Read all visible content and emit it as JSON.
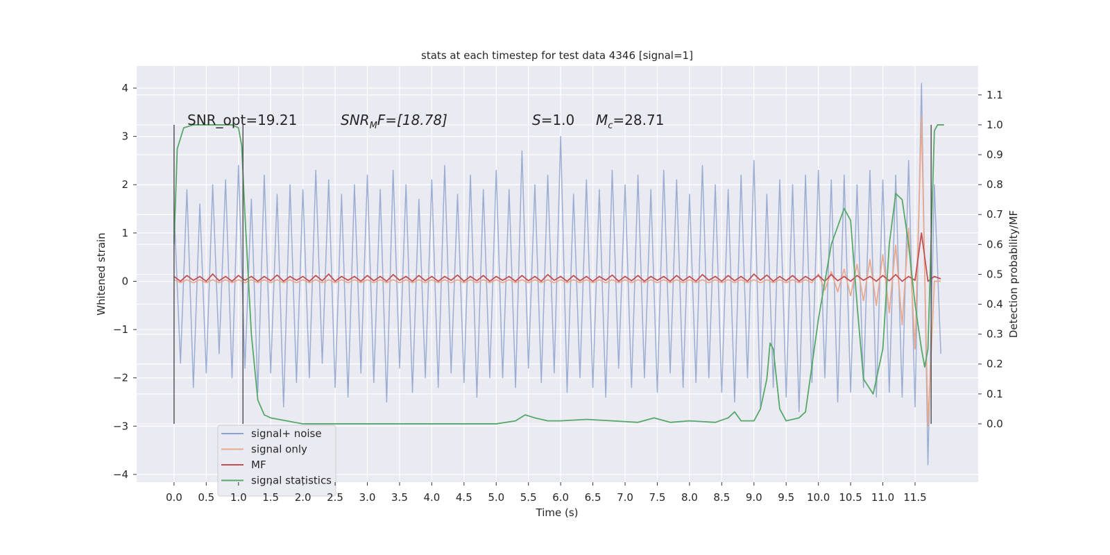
{
  "chart_data": {
    "type": "line",
    "title": "stats at each timestep for test data 4346 [signal=1]",
    "xlabel": "Time (s)",
    "ylabel": "Whitened strain",
    "y2label": "Detection probability/MF",
    "xlim": [
      -0.58,
      12.48
    ],
    "ylim": [
      -4.16,
      4.46
    ],
    "y2lim": [
      -0.195,
      1.197
    ],
    "xticks": [
      {
        "value": 0,
        "label": "0.0"
      },
      0.5,
      {
        "value": 1,
        "label": "1.0"
      },
      1.5,
      {
        "value": 2,
        "label": "2.0"
      },
      2.5,
      {
        "value": 3,
        "label": "3.0"
      },
      3.5,
      {
        "value": 4,
        "label": "4.0"
      },
      4.5,
      {
        "value": 5,
        "label": "5.0"
      },
      5.5,
      {
        "value": 6,
        "label": "6.0"
      },
      6.5,
      {
        "value": 7,
        "label": "7.0"
      },
      7.5,
      {
        "value": 8,
        "label": "8.0"
      },
      8.5,
      {
        "value": 9,
        "label": "9.0"
      },
      9.5,
      {
        "value": 10,
        "label": "10.0"
      },
      10.5,
      {
        "value": 11,
        "label": "11.0"
      },
      11.5
    ],
    "yticks": [
      {
        "value": -4,
        "label": "−4"
      },
      {
        "value": -3,
        "label": "−3"
      },
      {
        "value": -2,
        "label": "−2"
      },
      {
        "value": -1,
        "label": "−1"
      },
      0,
      1,
      2,
      3,
      4
    ],
    "y2ticks": [
      {
        "value": 0,
        "label": "0.0"
      },
      0.1,
      0.2,
      0.3,
      0.4,
      0.5,
      0.6,
      0.7,
      0.8,
      0.9,
      {
        "value": 1,
        "label": "1.0"
      },
      1.1
    ],
    "grid": true,
    "legend": "lower left",
    "annotations": [
      "SNR_opt=19.21",
      {
        "base": "SNR",
        "sub": "M",
        "rest": "F=[18.78]"
      },
      {
        "base": "S",
        "rest": "=1.0"
      },
      {
        "base": "M",
        "sub": "c",
        "rest": "=28.71"
      }
    ],
    "vlines": {
      "x": [
        0,
        1.07,
        11.75
      ],
      "y2range": [
        0,
        1
      ],
      "color": "#555555"
    },
    "x": [
      0,
      0.1,
      0.2,
      0.3,
      0.4,
      0.5,
      0.6,
      0.7,
      0.8,
      0.9,
      1,
      1.1,
      1.2,
      1.3,
      1.4,
      1.5,
      1.6,
      1.7,
      1.8,
      1.9,
      2,
      2.1,
      2.2,
      2.3,
      2.4,
      2.5,
      2.6,
      2.7,
      2.8,
      2.9,
      3,
      3.1,
      3.2,
      3.3,
      3.4,
      3.5,
      3.6,
      3.7,
      3.8,
      3.9,
      4,
      4.1,
      4.2,
      4.3,
      4.4,
      4.5,
      4.6,
      4.7,
      4.8,
      4.9,
      5,
      5.1,
      5.2,
      5.3,
      5.4,
      5.5,
      5.6,
      5.7,
      5.8,
      5.9,
      6,
      6.1,
      6.2,
      6.3,
      6.4,
      6.5,
      6.6,
      6.7,
      6.8,
      6.9,
      7,
      7.1,
      7.2,
      7.3,
      7.4,
      7.5,
      7.6,
      7.7,
      7.8,
      7.9,
      8,
      8.1,
      8.2,
      8.3,
      8.4,
      8.5,
      8.6,
      8.7,
      8.8,
      8.9,
      9,
      9.1,
      9.2,
      9.3,
      9.4,
      9.5,
      9.6,
      9.7,
      9.8,
      9.9,
      10,
      10.1,
      10.2,
      10.3,
      10.4,
      10.5,
      10.6,
      10.7,
      10.8,
      10.9,
      11,
      11.1,
      11.2,
      11.3,
      11.4,
      11.5,
      11.6,
      11.7,
      11.8,
      11.9
    ],
    "series": [
      {
        "name": "signal+ noise",
        "color": "#8da2cc",
        "values": [
          1.5,
          -1.7,
          1.9,
          -2.2,
          1.6,
          -1.9,
          2.0,
          -1.5,
          2.1,
          -2.0,
          2.4,
          -1.8,
          1.7,
          -2.3,
          2.2,
          -1.9,
          1.8,
          -2.6,
          2.0,
          -2.1,
          1.9,
          -2.0,
          2.3,
          -1.7,
          2.1,
          -2.2,
          1.8,
          -2.4,
          2.0,
          -1.9,
          2.2,
          -2.1,
          1.9,
          -2.5,
          2.3,
          -1.8,
          2.0,
          -2.3,
          1.7,
          -2.0,
          2.1,
          -2.2,
          2.4,
          -1.9,
          1.8,
          -2.1,
          2.2,
          -2.4,
          1.9,
          -2.0,
          2.3,
          -2.0,
          1.9,
          -2.2,
          2.7,
          -1.8,
          2.0,
          -2.1,
          2.2,
          -1.9,
          3.0,
          -2.3,
          1.8,
          -2.0,
          2.1,
          -2.2,
          1.9,
          -2.4,
          2.3,
          -1.8,
          2.0,
          -2.2,
          2.2,
          -2.0,
          1.9,
          -2.3,
          2.3,
          -1.9,
          2.1,
          -2.2,
          1.8,
          -2.1,
          2.4,
          -2.0,
          2.0,
          -2.3,
          1.9,
          -2.5,
          2.2,
          -2.0,
          2.5,
          -2.6,
          1.8,
          -2.2,
          2.1,
          -2.4,
          2.0,
          -2.7,
          2.2,
          -2.1,
          2.3,
          -2.0,
          2.1,
          -2.5,
          2.2,
          -2.3,
          2.0,
          -2.2,
          2.3,
          -2.4,
          2.1,
          -2.3,
          2.2,
          -2.4,
          2.5,
          -2.6,
          4.1,
          -3.8,
          2.0,
          -1.5
        ]
      },
      {
        "name": "signal only",
        "color": "#e9a98f",
        "values": [
          0.03,
          -0.03,
          0.03,
          -0.03,
          0.03,
          -0.03,
          0.03,
          -0.03,
          0.03,
          -0.03,
          0.03,
          -0.03,
          0.03,
          -0.03,
          0.03,
          -0.03,
          0.03,
          -0.03,
          0.03,
          -0.03,
          0.03,
          -0.03,
          0.03,
          -0.03,
          0.03,
          -0.03,
          0.03,
          -0.03,
          0.03,
          -0.03,
          0.03,
          -0.03,
          0.03,
          -0.03,
          0.03,
          -0.03,
          0.03,
          -0.03,
          0.03,
          -0.03,
          0.03,
          -0.03,
          0.03,
          -0.03,
          0.03,
          -0.03,
          0.03,
          -0.03,
          0.03,
          -0.03,
          0.03,
          -0.03,
          0.03,
          -0.03,
          0.03,
          -0.03,
          0.03,
          -0.03,
          0.03,
          -0.03,
          0.03,
          -0.03,
          0.03,
          -0.03,
          0.03,
          -0.03,
          0.03,
          -0.03,
          0.03,
          -0.03,
          0.03,
          -0.03,
          0.03,
          -0.03,
          0.03,
          -0.03,
          0.03,
          -0.03,
          0.03,
          -0.03,
          0.03,
          -0.03,
          0.03,
          -0.03,
          0.03,
          -0.03,
          0.03,
          -0.03,
          0.03,
          -0.03,
          0.03,
          -0.03,
          0.03,
          -0.03,
          0.03,
          -0.03,
          0.03,
          -0.03,
          0.03,
          -0.03,
          0.15,
          -0.18,
          0.2,
          -0.22,
          0.25,
          -0.3,
          0.35,
          -0.4,
          0.45,
          -0.5,
          0.55,
          -0.65,
          0.75,
          -0.9,
          1.1,
          -1.4,
          3.4,
          -3.0,
          0,
          0
        ]
      },
      {
        "name": "MF",
        "color": "#c44e52",
        "values": [
          0.1,
          0.0,
          0.12,
          0.02,
          0.1,
          0.0,
          0.15,
          0.01,
          0.1,
          0.0,
          0.12,
          0.02,
          0.1,
          0.0,
          0.1,
          0.01,
          0.13,
          0.0,
          0.1,
          0.02,
          0.1,
          0.0,
          0.12,
          0.01,
          0.15,
          0.0,
          0.1,
          0.02,
          0.1,
          0.0,
          0.12,
          0.01,
          0.1,
          0.0,
          0.14,
          0.02,
          0.1,
          0.0,
          0.12,
          0.01,
          0.1,
          0.0,
          0.1,
          0.02,
          0.13,
          0.0,
          0.1,
          0.01,
          0.12,
          0.0,
          0.1,
          0.02,
          0.1,
          0.0,
          0.12,
          0.01,
          0.1,
          0.0,
          0.14,
          0.02,
          0.1,
          0.0,
          0.12,
          0.01,
          0.1,
          0.0,
          0.1,
          0.02,
          0.13,
          0.0,
          0.1,
          0.01,
          0.12,
          0.0,
          0.1,
          0.02,
          0.1,
          0.0,
          0.12,
          0.01,
          0.1,
          0.0,
          0.14,
          0.02,
          0.1,
          0.0,
          0.12,
          0.01,
          0.1,
          0.0,
          0.15,
          0.02,
          0.13,
          0.0,
          0.1,
          0.01,
          0.12,
          0.0,
          0.1,
          0.02,
          0.12,
          0.0,
          0.14,
          0.01,
          0.1,
          0.0,
          0.12,
          0.02,
          0.1,
          0.0,
          0.12,
          0.01,
          0.14,
          0.0,
          0.1,
          0.02,
          1.0,
          0.0,
          0.1,
          0.05
        ]
      },
      {
        "name": "signal statistics",
        "color": "#55a868",
        "axis": "y2",
        "x": [
          0,
          0.05,
          0.15,
          0.3,
          0.6,
          0.9,
          1.0,
          1.05,
          1.1,
          1.2,
          1.3,
          1.4,
          1.5,
          2.0,
          3.0,
          4.0,
          5.0,
          5.3,
          5.45,
          5.6,
          5.8,
          6.0,
          6.4,
          6.8,
          7.2,
          7.45,
          7.7,
          8.0,
          8.4,
          8.6,
          8.7,
          8.8,
          9.0,
          9.1,
          9.2,
          9.25,
          9.3,
          9.4,
          9.5,
          9.7,
          9.8,
          10.0,
          10.2,
          10.4,
          10.5,
          10.6,
          10.7,
          10.85,
          11.0,
          11.1,
          11.2,
          11.3,
          11.4,
          11.5,
          11.6,
          11.65,
          11.7,
          11.8,
          11.85,
          11.95
        ],
        "values": [
          0.6,
          0.92,
          0.99,
          1.0,
          1.0,
          1.0,
          0.99,
          0.93,
          0.7,
          0.3,
          0.08,
          0.03,
          0.02,
          0.0,
          0.0,
          0.0,
          0.0,
          0.01,
          0.03,
          0.02,
          0.01,
          0.01,
          0.015,
          0.01,
          0.005,
          0.02,
          0.005,
          0.01,
          0.005,
          0.02,
          0.04,
          0.01,
          0.01,
          0.05,
          0.15,
          0.27,
          0.25,
          0.05,
          0.01,
          0.02,
          0.04,
          0.35,
          0.6,
          0.72,
          0.68,
          0.4,
          0.15,
          0.1,
          0.25,
          0.6,
          0.77,
          0.75,
          0.6,
          0.4,
          0.25,
          0.19,
          0.25,
          0.98,
          1.0,
          1.0
        ]
      }
    ]
  }
}
